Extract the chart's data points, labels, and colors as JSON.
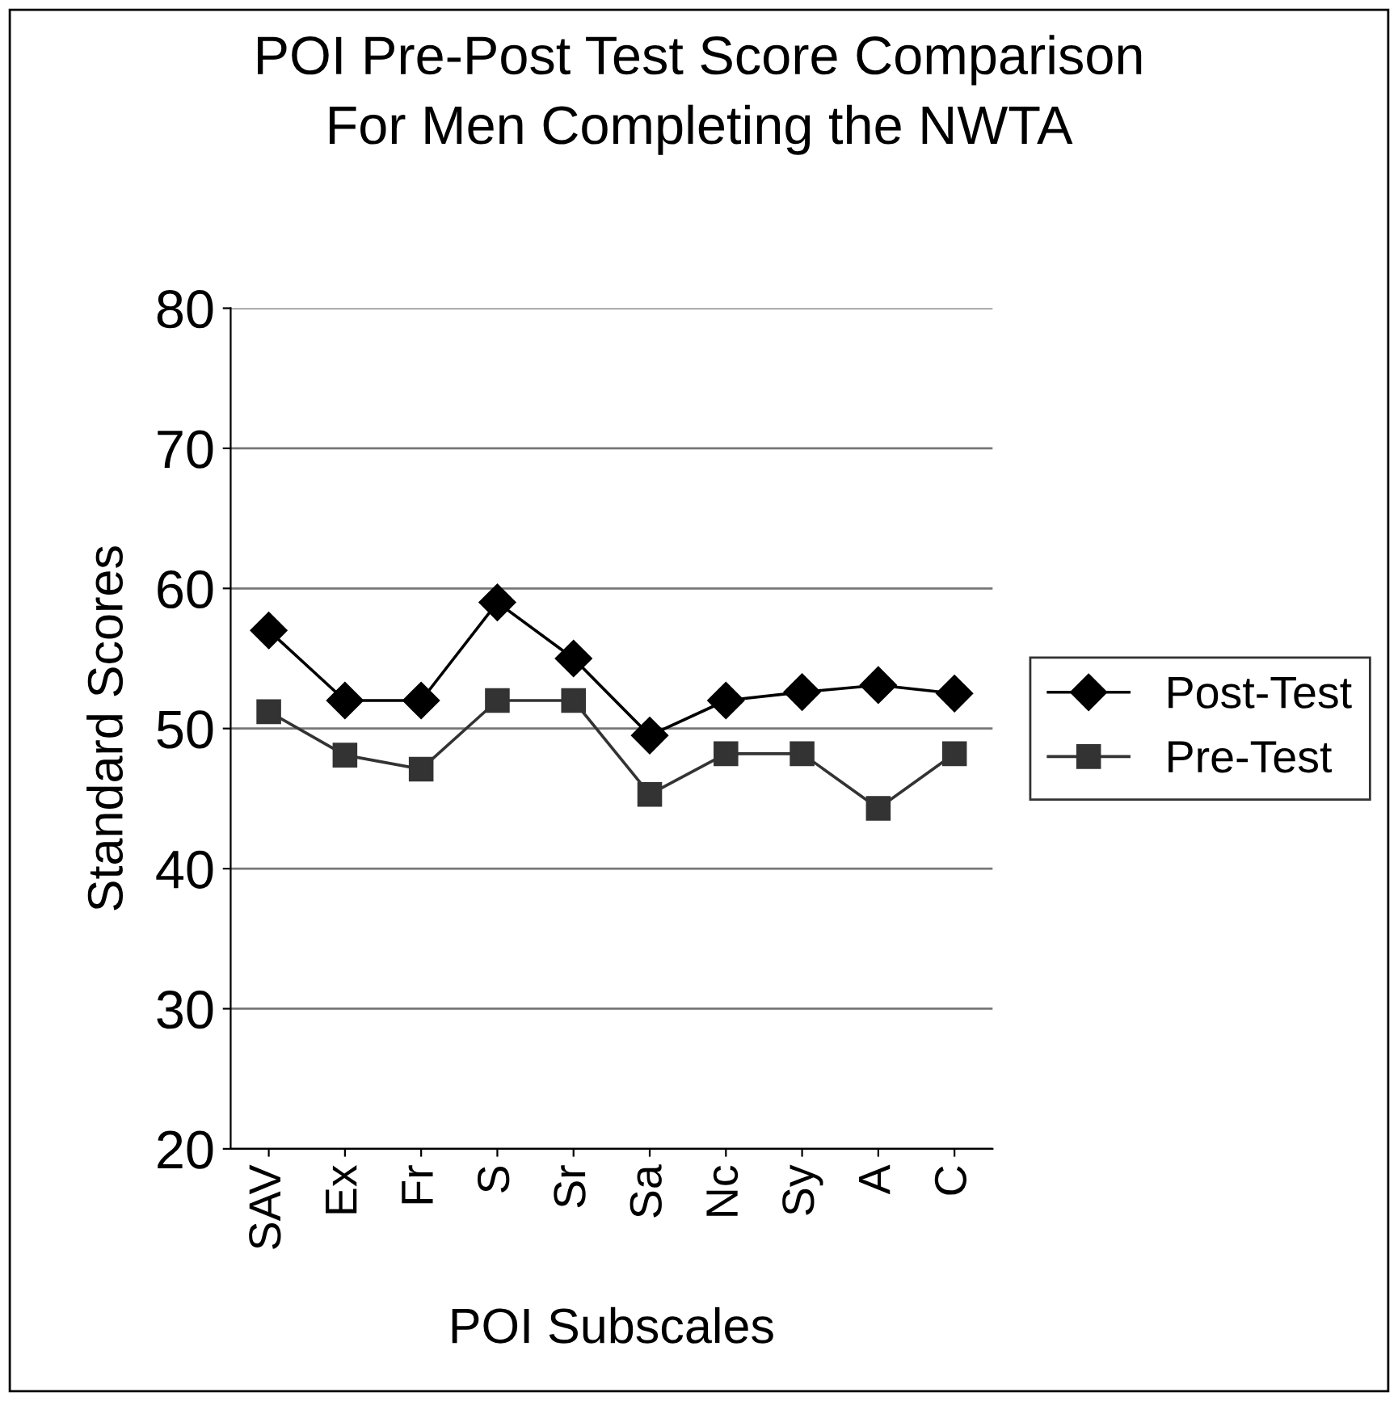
{
  "chart_data": {
    "type": "line",
    "title": "POI Pre-Post Test Score Comparison\nFor Men Completing the NWTA",
    "xlabel": "POI Subscales",
    "ylabel": "Standard Scores",
    "categories": [
      "SAV",
      "Ex",
      "Fr",
      "S",
      "Sr",
      "Sa",
      "Nc",
      "Sy",
      "A",
      "C"
    ],
    "series": [
      {
        "name": "Post-Test",
        "color": "#000000",
        "marker": "diamond",
        "values": [
          57,
          52,
          52,
          59,
          55,
          49.5,
          52,
          52.6,
          53.1,
          52.5
        ]
      },
      {
        "name": "Pre-Test",
        "color": "#333333",
        "marker": "square",
        "values": [
          51.2,
          48.1,
          47.1,
          52,
          52,
          45.3,
          48.2,
          48.2,
          44.3,
          48.2
        ]
      }
    ],
    "ylim": [
      20,
      80
    ],
    "yticks": [
      20,
      30,
      40,
      50,
      60,
      70,
      80
    ],
    "grid": "y",
    "legend": "right",
    "line_style": "solid"
  }
}
